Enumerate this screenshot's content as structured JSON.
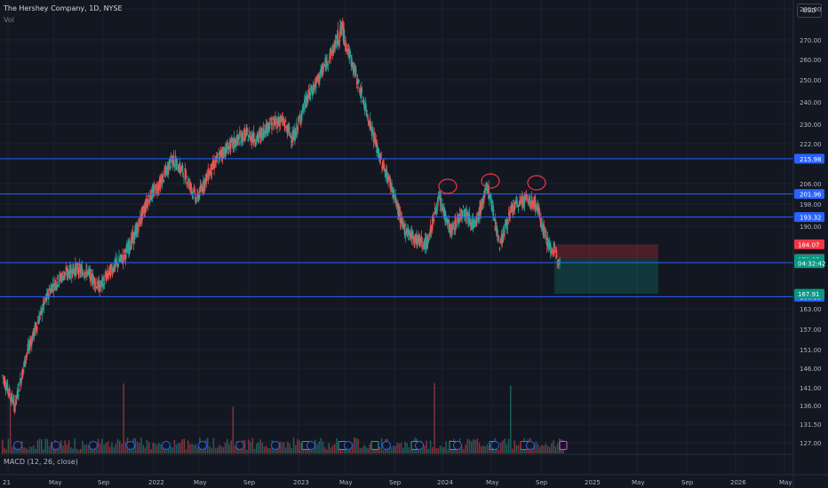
{
  "header": {
    "symbol_line": "The Hershey Company, 1D, NYSE",
    "vol_label": "Vol",
    "currency": "USD"
  },
  "macd_label": "MACD (12, 26, close)",
  "price_axis": {
    "ticks": [
      "280.00",
      "270.00",
      "260.00",
      "250.00",
      "240.00",
      "230.00",
      "222.00",
      "206.00",
      "198.00",
      "190.00",
      "163.00",
      "157.00",
      "151.00",
      "146.00",
      "141.00",
      "136.00",
      "131.50",
      "127.00"
    ]
  },
  "levels": [
    {
      "value": 215.98,
      "label": "215.98"
    },
    {
      "value": 201.96,
      "label": "201.96"
    },
    {
      "value": 193.32,
      "label": "193.32"
    },
    {
      "value": 178.11,
      "label": "178.11"
    },
    {
      "value": 166.95,
      "label": "166.95"
    }
  ],
  "price_tags": [
    {
      "label": "184.07",
      "color": "#f23645",
      "value": 184.07
    },
    {
      "label": "179.38",
      "color": "#5d606b",
      "value": 179.38
    },
    {
      "label": "179.07",
      "color": "#089981",
      "value": 179.07
    },
    {
      "label": "04:32:42",
      "color": "#089981",
      "value": 177.9
    },
    {
      "label": "167.91",
      "color": "#089981",
      "value": 167.91
    }
  ],
  "time_axis": {
    "labels": [
      {
        "t": "21",
        "x": 3
      },
      {
        "t": "May",
        "x": 55
      },
      {
        "t": "Sep",
        "x": 110
      },
      {
        "t": "2022",
        "x": 167
      },
      {
        "t": "May",
        "x": 218
      },
      {
        "t": "Sep",
        "x": 274
      },
      {
        "t": "2023",
        "x": 330
      },
      {
        "t": "May",
        "x": 382
      },
      {
        "t": "Sep",
        "x": 438
      },
      {
        "t": "2024",
        "x": 492
      },
      {
        "t": "May",
        "x": 547
      },
      {
        "t": "Sep",
        "x": 603
      },
      {
        "t": "2025",
        "x": 658
      },
      {
        "t": "May",
        "x": 711
      },
      {
        "t": "Sep",
        "x": 767
      },
      {
        "t": "2026",
        "x": 822
      },
      {
        "t": "May",
        "x": 877
      }
    ]
  },
  "colors": {
    "bg": "#131722",
    "up": "#26a69a",
    "down": "#ef5350",
    "level": "#2962ff",
    "circle": "#f23645"
  },
  "chart_data": {
    "type": "candlestick",
    "title": "The Hershey Company, 1D, NYSE",
    "ylim": [
      124,
      283
    ],
    "y_scale": "log",
    "price_path": [
      [
        "2021-01",
        144
      ],
      [
        "2021-02",
        136
      ],
      [
        "2021-03",
        150
      ],
      [
        "2021-04",
        160
      ],
      [
        "2021-05",
        170
      ],
      [
        "2021-06",
        174
      ],
      [
        "2021-07",
        176
      ],
      [
        "2021-08",
        175
      ],
      [
        "2021-09",
        170
      ],
      [
        "2021-10",
        176
      ],
      [
        "2021-11",
        180
      ],
      [
        "2021-12",
        188
      ],
      [
        "2022-01",
        200
      ],
      [
        "2022-02",
        206
      ],
      [
        "2022-03",
        216
      ],
      [
        "2022-04",
        210
      ],
      [
        "2022-05",
        200
      ],
      [
        "2022-06",
        210
      ],
      [
        "2022-07",
        218
      ],
      [
        "2022-08",
        222
      ],
      [
        "2022-09",
        226
      ],
      [
        "2022-10",
        224
      ],
      [
        "2022-11",
        230
      ],
      [
        "2022-12",
        232
      ],
      [
        "2023-01",
        224
      ],
      [
        "2023-02",
        240
      ],
      [
        "2023-03",
        250
      ],
      [
        "2023-04",
        262
      ],
      [
        "2023-05",
        274
      ],
      [
        "2023-06",
        255
      ],
      [
        "2023-07",
        236
      ],
      [
        "2023-08",
        218
      ],
      [
        "2023-09",
        206
      ],
      [
        "2023-10",
        190
      ],
      [
        "2023-11",
        186
      ],
      [
        "2023-12",
        184
      ],
      [
        "2024-01",
        200
      ],
      [
        "2024-02",
        188
      ],
      [
        "2024-03",
        196
      ],
      [
        "2024-04",
        190
      ],
      [
        "2024-05",
        205
      ],
      [
        "2024-06",
        184
      ],
      [
        "2024-07",
        196
      ],
      [
        "2024-08",
        200
      ],
      [
        "2024-09",
        198
      ],
      [
        "2024-10",
        184
      ],
      [
        "2024-11",
        179
      ]
    ],
    "horizontal_levels": [
      215.98,
      201.96,
      193.32,
      178.11,
      166.95
    ],
    "position": {
      "entry": 179.38,
      "stop": 184.07,
      "target": 167.91
    },
    "annotations": [
      "three circled peaks near 206 (head-and-shoulders style)"
    ]
  }
}
